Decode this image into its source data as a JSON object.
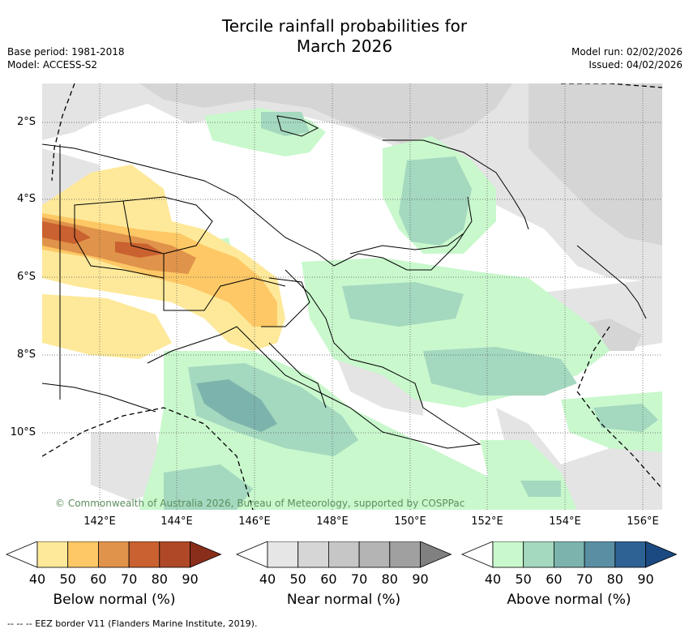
{
  "title_line1": "Tercile rainfall probabilities for",
  "title_line2": "March 2026",
  "meta_left": [
    "Base period: 1981-2018",
    "Model: ACCESS-S2"
  ],
  "meta_right": [
    "Model run: 02/02/2026",
    "Issued: 04/02/2026"
  ],
  "lat_labels": [
    "2°S",
    "4°S",
    "6°S",
    "8°S",
    "10°S"
  ],
  "lon_labels": [
    "142°E",
    "144°E",
    "146°E",
    "148°E",
    "150°E",
    "152°E",
    "154°E",
    "156°E"
  ],
  "copyright": "© Commonwealth of Australia 2026, Bureau of Meteorology, supported by COSPPac",
  "colorbars": [
    {
      "title": "Below normal (%)",
      "ticks": [
        "40",
        "50",
        "60",
        "70",
        "80",
        "90"
      ],
      "colors": [
        "#ffffff",
        "#fee99a",
        "#fdc865",
        "#e0934a",
        "#c96130",
        "#ae4827",
        "#8a2e1c"
      ]
    },
    {
      "title": "Near normal (%)",
      "ticks": [
        "40",
        "50",
        "60",
        "70",
        "80",
        "90"
      ],
      "colors": [
        "#ffffff",
        "#e6e6e6",
        "#d6d6d6",
        "#c6c6c6",
        "#b4b4b4",
        "#a0a0a0",
        "#808080"
      ]
    },
    {
      "title": "Above normal (%)",
      "ticks": [
        "40",
        "50",
        "60",
        "70",
        "80",
        "90"
      ],
      "colors": [
        "#ffffff",
        "#c9f8cd",
        "#a4d8bf",
        "#7cb4ad",
        "#5a8fa3",
        "#2e6294",
        "#1b4a82"
      ]
    }
  ],
  "footnote": "--  --  -- EEZ border V11 (Flanders Marine Institute, 2019)."
}
